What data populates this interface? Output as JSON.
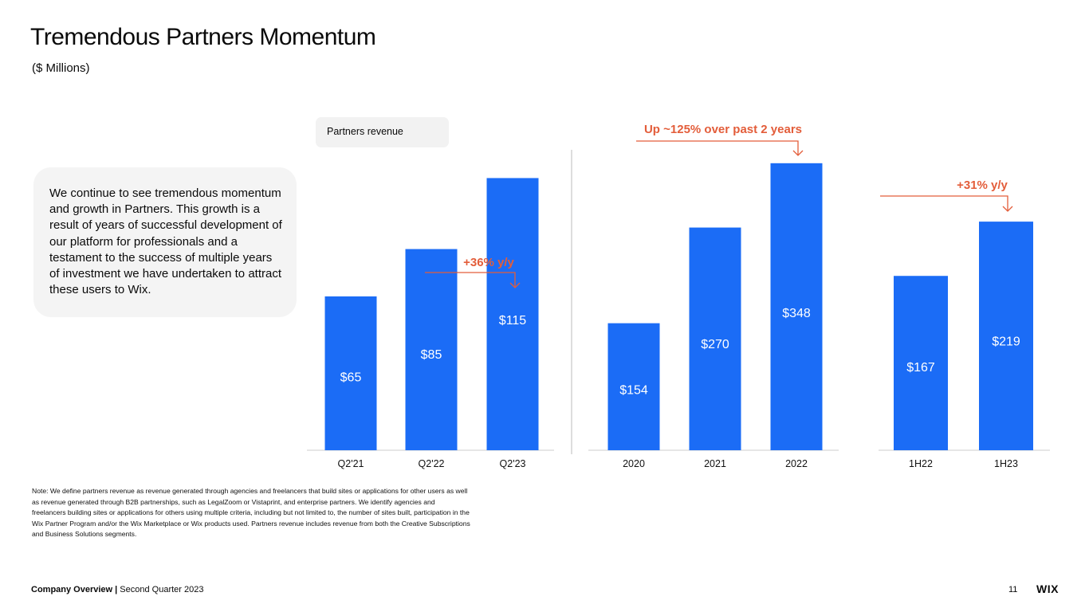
{
  "header": {
    "title": "Tremendous Partners Momentum",
    "subtitle": "($ Millions)"
  },
  "callout": {
    "text": "We continue to see tremendous momentum and growth in Partners. This growth is a result of years of successful development of our platform for professionals and a testament to the success of multiple years of investment we have undertaken to attract these users to Wix."
  },
  "legend": {
    "label": "Partners revenue"
  },
  "colors": {
    "bar": "#1b6cf6",
    "accent": "#e35d3a",
    "axis": "#cccccc",
    "divider": "#bbbbbb"
  },
  "chart_data": [
    {
      "type": "bar",
      "categories": [
        "Q2'21",
        "Q2'22",
        "Q2'23"
      ],
      "values": [
        65,
        85,
        115
      ],
      "labels": [
        "$65",
        "$85",
        "$115"
      ],
      "annotation": "+36% y/y"
    },
    {
      "type": "bar",
      "categories": [
        "2020",
        "2021",
        "2022"
      ],
      "values": [
        154,
        270,
        348
      ],
      "labels": [
        "$154",
        "$270",
        "$348"
      ],
      "annotation": "Up ~125% over past 2 years"
    },
    {
      "type": "bar",
      "categories": [
        "1H22",
        "1H23"
      ],
      "values": [
        167,
        219
      ],
      "labels": [
        "$167",
        "$219"
      ],
      "annotation": "+31% y/y"
    }
  ],
  "note": "Note: We define partners revenue as revenue generated through agencies and freelancers that build sites or applications for other users as well as revenue generated through B2B partnerships, such as LegalZoom or Vistaprint, and enterprise partners. We identify agencies and freelancers building sites or applications for others using multiple criteria, including but not limited to, the number of sites built, participation in the Wix Partner Program and/or the Wix Marketplace or Wix products used. Partners revenue includes revenue from both the Creative Subscriptions and Business Solutions segments.",
  "footer": {
    "section": "Company Overview",
    "separator": "|",
    "period": "Second Quarter 2023",
    "page": "11",
    "logo": "WIX"
  }
}
